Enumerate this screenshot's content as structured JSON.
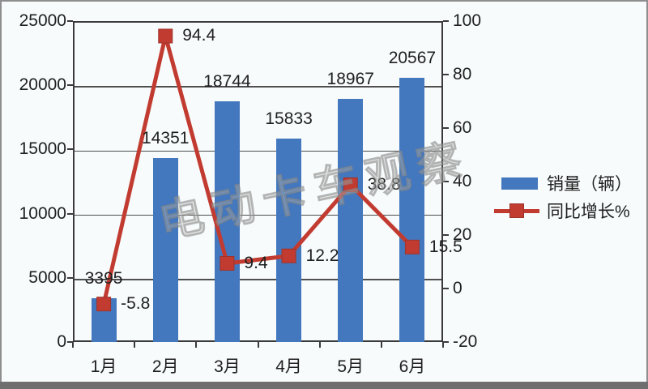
{
  "chart_data": {
    "type": "bar+line",
    "title": "",
    "categories": [
      "1月",
      "2月",
      "3月",
      "4月",
      "5月",
      "6月"
    ],
    "series": [
      {
        "name": "销量（辆）",
        "type": "bar",
        "color": "#4478BE",
        "axis": "left",
        "values": [
          3395,
          14351,
          18744,
          15833,
          18967,
          20567
        ]
      },
      {
        "name": "同比增长%",
        "type": "line",
        "color": "#C23B31",
        "axis": "right",
        "values": [
          -5.8,
          94.4,
          9.4,
          12.2,
          38.8,
          15.5
        ]
      }
    ],
    "left_axis": {
      "min": 0,
      "max": 25000,
      "step": 5000,
      "ticks": [
        25000,
        20000,
        15000,
        10000,
        5000,
        0
      ]
    },
    "right_axis": {
      "min": -20,
      "max": 100,
      "step": 20,
      "ticks": [
        100,
        80,
        60,
        40,
        20,
        0,
        -20
      ]
    },
    "grid": "horizontal",
    "legend_position": "right",
    "watermark": "电动卡车观察"
  }
}
